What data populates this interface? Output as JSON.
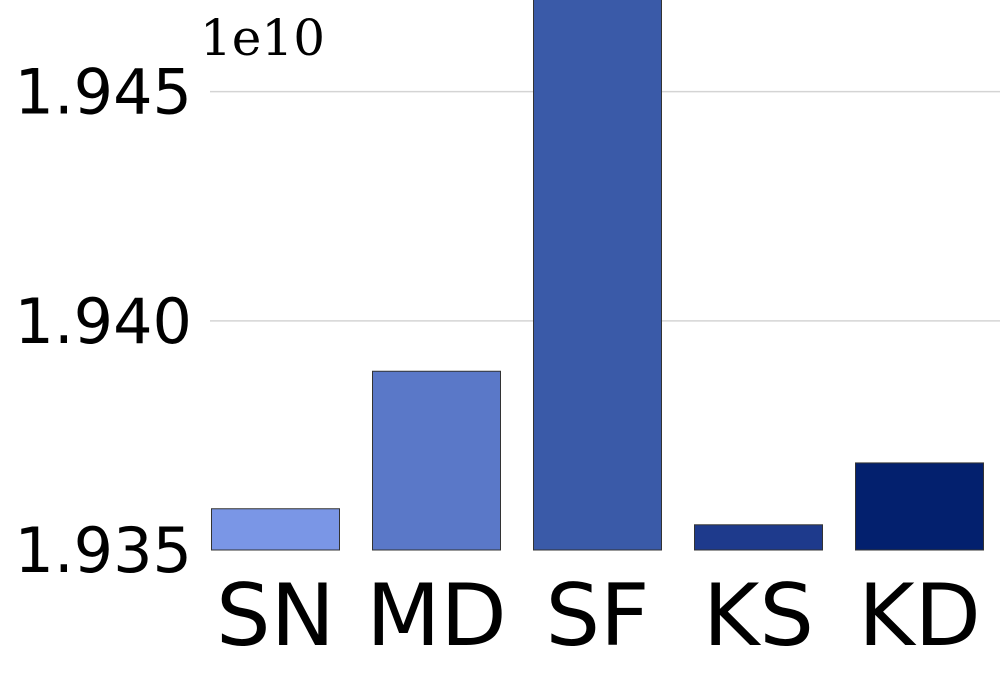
{
  "chart_data": {
    "type": "bar",
    "categories": [
      "SN",
      "MD",
      "SF",
      "KS",
      "KD"
    ],
    "values": [
      19359000000,
      19389000000,
      19472000000,
      19355500000,
      19369000000
    ],
    "colors": [
      "#7a96e6",
      "#5a78c8",
      "#3a5aa8",
      "#1e3a8c",
      "#03206e"
    ],
    "axis_multiplier": "1e10",
    "ylim": [
      1.935,
      1.947
    ],
    "yticks": [
      1.935,
      1.94,
      1.945
    ],
    "ytick_labels": [
      "1.935",
      "1.940",
      "1.945"
    ],
    "grid": "horizontal",
    "title": "",
    "xlabel": "",
    "ylabel": ""
  }
}
